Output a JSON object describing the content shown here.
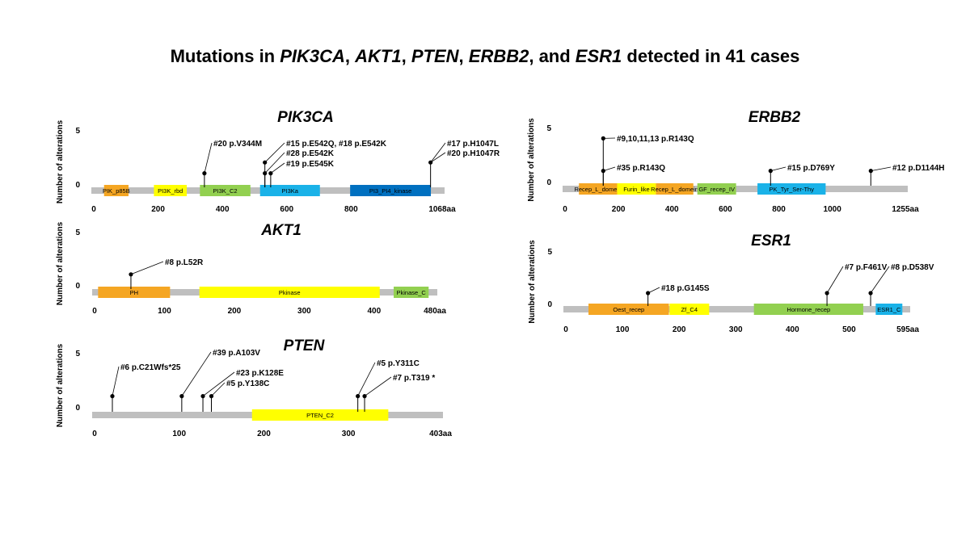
{
  "title_parts": [
    {
      "text": "Mutations in ",
      "italic": false
    },
    {
      "text": "PIK3CA",
      "italic": true
    },
    {
      "text": ", ",
      "italic": false
    },
    {
      "text": "AKT1",
      "italic": true
    },
    {
      "text": ", ",
      "italic": false
    },
    {
      "text": "PTEN",
      "italic": true
    },
    {
      "text": ", ",
      "italic": false
    },
    {
      "text": "ERBB2",
      "italic": true
    },
    {
      "text": ", and ",
      "italic": false
    },
    {
      "text": "ESR1",
      "italic": true
    },
    {
      "text": " detected in 41 cases",
      "italic": false
    }
  ],
  "ylabel": "Number of alterations",
  "y_ticks": [
    0,
    5
  ],
  "genes": [
    {
      "id": "pik3ca",
      "name": "PIK3CA",
      "length": 1068,
      "length_label": "1068aa",
      "ticks": [
        0,
        200,
        400,
        600,
        800
      ],
      "domains": [
        {
          "name": "PIK_p85B",
          "start": 32,
          "end": 108,
          "color": "#f5a623"
        },
        {
          "name": "PI3K_rbd",
          "start": 187,
          "end": 289,
          "color": "#ffff00"
        },
        {
          "name": "PI3K_C2",
          "start": 330,
          "end": 487,
          "color": "#92d050"
        },
        {
          "name": "PI3Ka",
          "start": 517,
          "end": 703,
          "color": "#1ab2e8"
        },
        {
          "name": "PI3_PI4_kinase",
          "start": 797,
          "end": 1048,
          "color": "#0070c0"
        }
      ],
      "mutations": [
        {
          "pos": 344,
          "count": 1,
          "labels": [
            "#20 p.V344M"
          ]
        },
        {
          "pos": 542,
          "count": 2,
          "labels": [
            "#15 p.E542Q, #18 p.E542K"
          ]
        },
        {
          "pos": 542,
          "count": 1,
          "labels": [
            "#28 p.E542K"
          ]
        },
        {
          "pos": 545,
          "count": 1,
          "labels": [
            "#19 p.E545K"
          ]
        },
        {
          "pos": 1047,
          "count": 2,
          "labels": [
            "#17 p.H1047L",
            "#20 p.H1047R"
          ]
        }
      ]
    },
    {
      "id": "akt1",
      "name": "AKT1",
      "length": 480,
      "length_label": "480aa",
      "ticks": [
        0,
        100,
        200,
        300,
        400
      ],
      "domains": [
        {
          "name": "PH",
          "start": 5,
          "end": 108,
          "color": "#f5a623"
        },
        {
          "name": "Pkinase",
          "start": 150,
          "end": 408,
          "color": "#ffff00"
        },
        {
          "name": "Pkinase_C",
          "start": 428,
          "end": 478,
          "color": "#92d050"
        }
      ],
      "mutations": [
        {
          "pos": 52,
          "count": 1,
          "labels": [
            "#8 p.L52R"
          ]
        }
      ]
    },
    {
      "id": "pten",
      "name": "PTEN",
      "length": 403,
      "length_label": "403aa",
      "ticks": [
        0,
        100,
        200,
        300
      ],
      "domains": [
        {
          "name": "PTEN_C2",
          "start": 186,
          "end": 347,
          "color": "#ffff00"
        }
      ],
      "mutations": [
        {
          "pos": 21,
          "count": 1,
          "labels": [
            "#6 p.C21Wfs*25"
          ]
        },
        {
          "pos": 103,
          "count": 1,
          "labels": [
            "#39 p.A103V"
          ]
        },
        {
          "pos": 128,
          "count": 1,
          "labels": [
            "#23 p.K128E"
          ]
        },
        {
          "pos": 138,
          "count": 1,
          "labels": [
            "#5 p.Y138C"
          ]
        },
        {
          "pos": 311,
          "count": 1,
          "labels": [
            "#5 p.Y311C"
          ]
        },
        {
          "pos": 319,
          "count": 1,
          "labels": [
            "#7 p.T319 *"
          ]
        }
      ]
    },
    {
      "id": "erbb2",
      "name": "ERBB2",
      "length": 1255,
      "length_label": "1255aa",
      "ticks": [
        0,
        200,
        400,
        600,
        800,
        1000
      ],
      "domains": [
        {
          "name": "Recep_L_domein",
          "start": 52,
          "end": 195,
          "color": "#f5a623"
        },
        {
          "name": "Furin_like",
          "start": 195,
          "end": 340,
          "color": "#ffff00"
        },
        {
          "name": "Recep_L_domein",
          "start": 340,
          "end": 480,
          "color": "#f5a623"
        },
        {
          "name": "GF_recep_IV",
          "start": 495,
          "end": 640,
          "color": "#92d050"
        },
        {
          "name": "PK_Tyr_Ser-Thy",
          "start": 720,
          "end": 975,
          "color": "#1ab2e8"
        }
      ],
      "mutations": [
        {
          "pos": 143,
          "count": 4,
          "labels": [
            "#9,10,11,13 p.R143Q"
          ]
        },
        {
          "pos": 143,
          "count": 1,
          "labels": [
            "#35 p.R143Q"
          ]
        },
        {
          "pos": 769,
          "count": 1,
          "labels": [
            "#15 p.D769Y"
          ]
        },
        {
          "pos": 1144,
          "count": 1,
          "labels": [
            "#12 p.D1144H"
          ]
        }
      ]
    },
    {
      "id": "esr1",
      "name": "ESR1",
      "length": 595,
      "length_label": "595aa",
      "ticks": [
        0,
        100,
        200,
        300,
        400,
        500
      ],
      "domains": [
        {
          "name": "Oest_recep",
          "start": 40,
          "end": 182,
          "color": "#f5a623"
        },
        {
          "name": "Zf_C4",
          "start": 183,
          "end": 253,
          "color": "#ffff00"
        },
        {
          "name": "Hormone_recep",
          "start": 332,
          "end": 525,
          "color": "#92d050"
        },
        {
          "name": "ESR1_C",
          "start": 547,
          "end": 594,
          "color": "#1ab2e8"
        }
      ],
      "mutations": [
        {
          "pos": 145,
          "count": 1,
          "labels": [
            "#18 p.G145S"
          ]
        },
        {
          "pos": 461,
          "count": 1,
          "labels": [
            "#7 p.F461V"
          ]
        },
        {
          "pos": 538,
          "count": 1,
          "labels": [
            "#8 p.D538V"
          ]
        }
      ]
    }
  ]
}
